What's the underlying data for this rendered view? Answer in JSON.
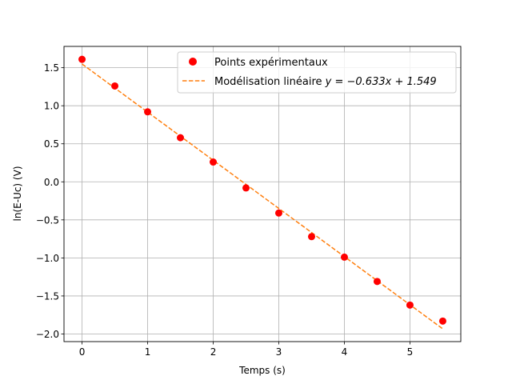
{
  "chart_data": {
    "type": "scatter",
    "xlabel": "Temps (s)",
    "ylabel": "ln(E-Uc) (V)",
    "xlim": [
      -0.275,
      5.775
    ],
    "ylim": [
      -2.1,
      1.78
    ],
    "xticks": [
      0,
      1,
      2,
      3,
      4,
      5
    ],
    "yticks": [
      1.5,
      1.0,
      0.5,
      0.0,
      -0.5,
      -1.0,
      -1.5,
      -2.0
    ],
    "xtick_labels": [
      "0",
      "1",
      "2",
      "3",
      "4",
      "5"
    ],
    "ytick_labels": [
      "1.5",
      "1.0",
      "0.5",
      "0.0",
      "−0.5",
      "−1.0",
      "−1.5",
      "−2.0"
    ],
    "grid": true,
    "legend_position": "top-right",
    "series": [
      {
        "name": "Points expérimentaux",
        "kind": "scatter",
        "color": "#ff0000",
        "x": [
          0,
          0.5,
          1,
          1.5,
          2,
          2.5,
          3,
          3.5,
          4,
          4.5,
          5,
          5.5
        ],
        "y": [
          1.61,
          1.26,
          0.92,
          0.58,
          0.26,
          -0.08,
          -0.41,
          -0.72,
          -0.99,
          -1.31,
          -1.62,
          -1.83
        ]
      },
      {
        "name": "Modélisation linéaire ",
        "equation": "y = −0.633x + 1.549",
        "kind": "line",
        "style": "dashed",
        "color": "#ff7f0e",
        "slope": -0.633,
        "intercept": 1.549,
        "x_range": [
          0,
          5.5
        ]
      }
    ]
  }
}
